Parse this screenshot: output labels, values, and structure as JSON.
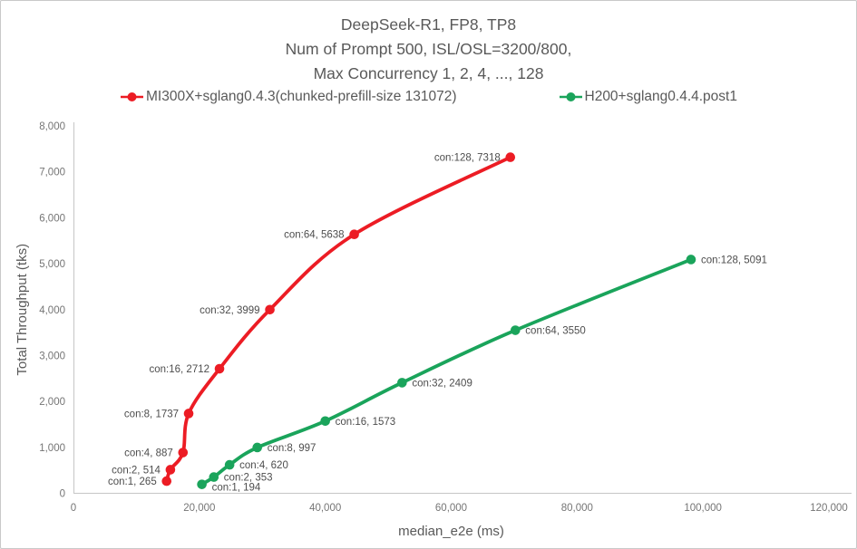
{
  "title": {
    "lines": [
      "DeepSeek-R1, FP8, TP8",
      "Num of Prompt 500, ISL/OSL=3200/800,",
      "Max Concurrency 1, 2, 4, ..., 128"
    ]
  },
  "legend": {
    "items": [
      {
        "label": "MI300X+sglang0.4.3(chunked-prefill-size 131072)",
        "color": "#EC1C24"
      },
      {
        "label": "H200+sglang0.4.4.post1",
        "color": "#1AA45B"
      }
    ]
  },
  "chart_data": {
    "type": "line",
    "title": "DeepSeek-R1, FP8, TP8 / Num of Prompt 500, ISL/OSL=3200/800, Max Concurrency 1, 2, 4, ..., 128",
    "xlabel": "median_e2e (ms)",
    "ylabel": "Total Throughput (tks)",
    "grid": false,
    "legend_position": "top",
    "x_axis": {
      "label": "median_e2e (ms)",
      "range": [
        0,
        120000
      ],
      "tick_values": [
        0,
        20000,
        40000,
        60000,
        80000,
        100000,
        120000
      ],
      "tick_labels": [
        "0",
        "20,000",
        "40,000",
        "60,000",
        "80,000",
        "100,000",
        "120,000"
      ]
    },
    "y_axis": {
      "label": "Total Throughput (tks)",
      "range": [
        0,
        8000
      ],
      "tick_values": [
        0,
        1000,
        2000,
        3000,
        4000,
        5000,
        6000,
        7000,
        8000
      ],
      "tick_labels": [
        "0",
        "1,000",
        "2,000",
        "3,000",
        "4,000",
        "5,000",
        "6,000",
        "7,000",
        "8,000"
      ]
    },
    "series": [
      {
        "name": "MI300X+sglang0.4.3(chunked-prefill-size 131072)",
        "color": "#EC1C24",
        "label_side": "left",
        "points": [
          {
            "con": 1,
            "x": 14800,
            "y": 265,
            "label": "con:1, 265"
          },
          {
            "con": 2,
            "x": 15400,
            "y": 514,
            "label": "con:2, 514"
          },
          {
            "con": 4,
            "x": 17400,
            "y": 887,
            "label": "con:4, 887"
          },
          {
            "con": 8,
            "x": 18300,
            "y": 1737,
            "label": "con:8, 1737"
          },
          {
            "con": 16,
            "x": 23200,
            "y": 2712,
            "label": "con:16, 2712"
          },
          {
            "con": 32,
            "x": 31200,
            "y": 3999,
            "label": "con:32, 3999"
          },
          {
            "con": 64,
            "x": 44600,
            "y": 5638,
            "label": "con:64, 5638"
          },
          {
            "con": 128,
            "x": 69400,
            "y": 7318,
            "label": "con:128, 7318"
          }
        ]
      },
      {
        "name": "H200+sglang0.4.4.post1",
        "color": "#1AA45B",
        "label_side": "right",
        "points": [
          {
            "con": 1,
            "x": 20400,
            "y": 194,
            "label": "con:1, 194",
            "dy": 3
          },
          {
            "con": 2,
            "x": 22300,
            "y": 353,
            "label": "con:2, 353"
          },
          {
            "con": 4,
            "x": 24800,
            "y": 620,
            "label": "con:4, 620"
          },
          {
            "con": 8,
            "x": 29200,
            "y": 997,
            "label": "con:8, 997"
          },
          {
            "con": 16,
            "x": 40000,
            "y": 1573,
            "label": "con:16, 1573"
          },
          {
            "con": 32,
            "x": 52200,
            "y": 2409,
            "label": "con:32, 2409"
          },
          {
            "con": 64,
            "x": 70200,
            "y": 3550,
            "label": "con:64, 3550"
          },
          {
            "con": 128,
            "x": 98100,
            "y": 5091,
            "label": "con:128, 5091"
          }
        ]
      }
    ]
  },
  "colors": {
    "axis_line": "#c6c6c6",
    "tick_text": "#757575",
    "title_text": "#595959",
    "point_label_text": "#4d4d4d",
    "background": "#ffffff",
    "border": "#c9c9c9"
  }
}
